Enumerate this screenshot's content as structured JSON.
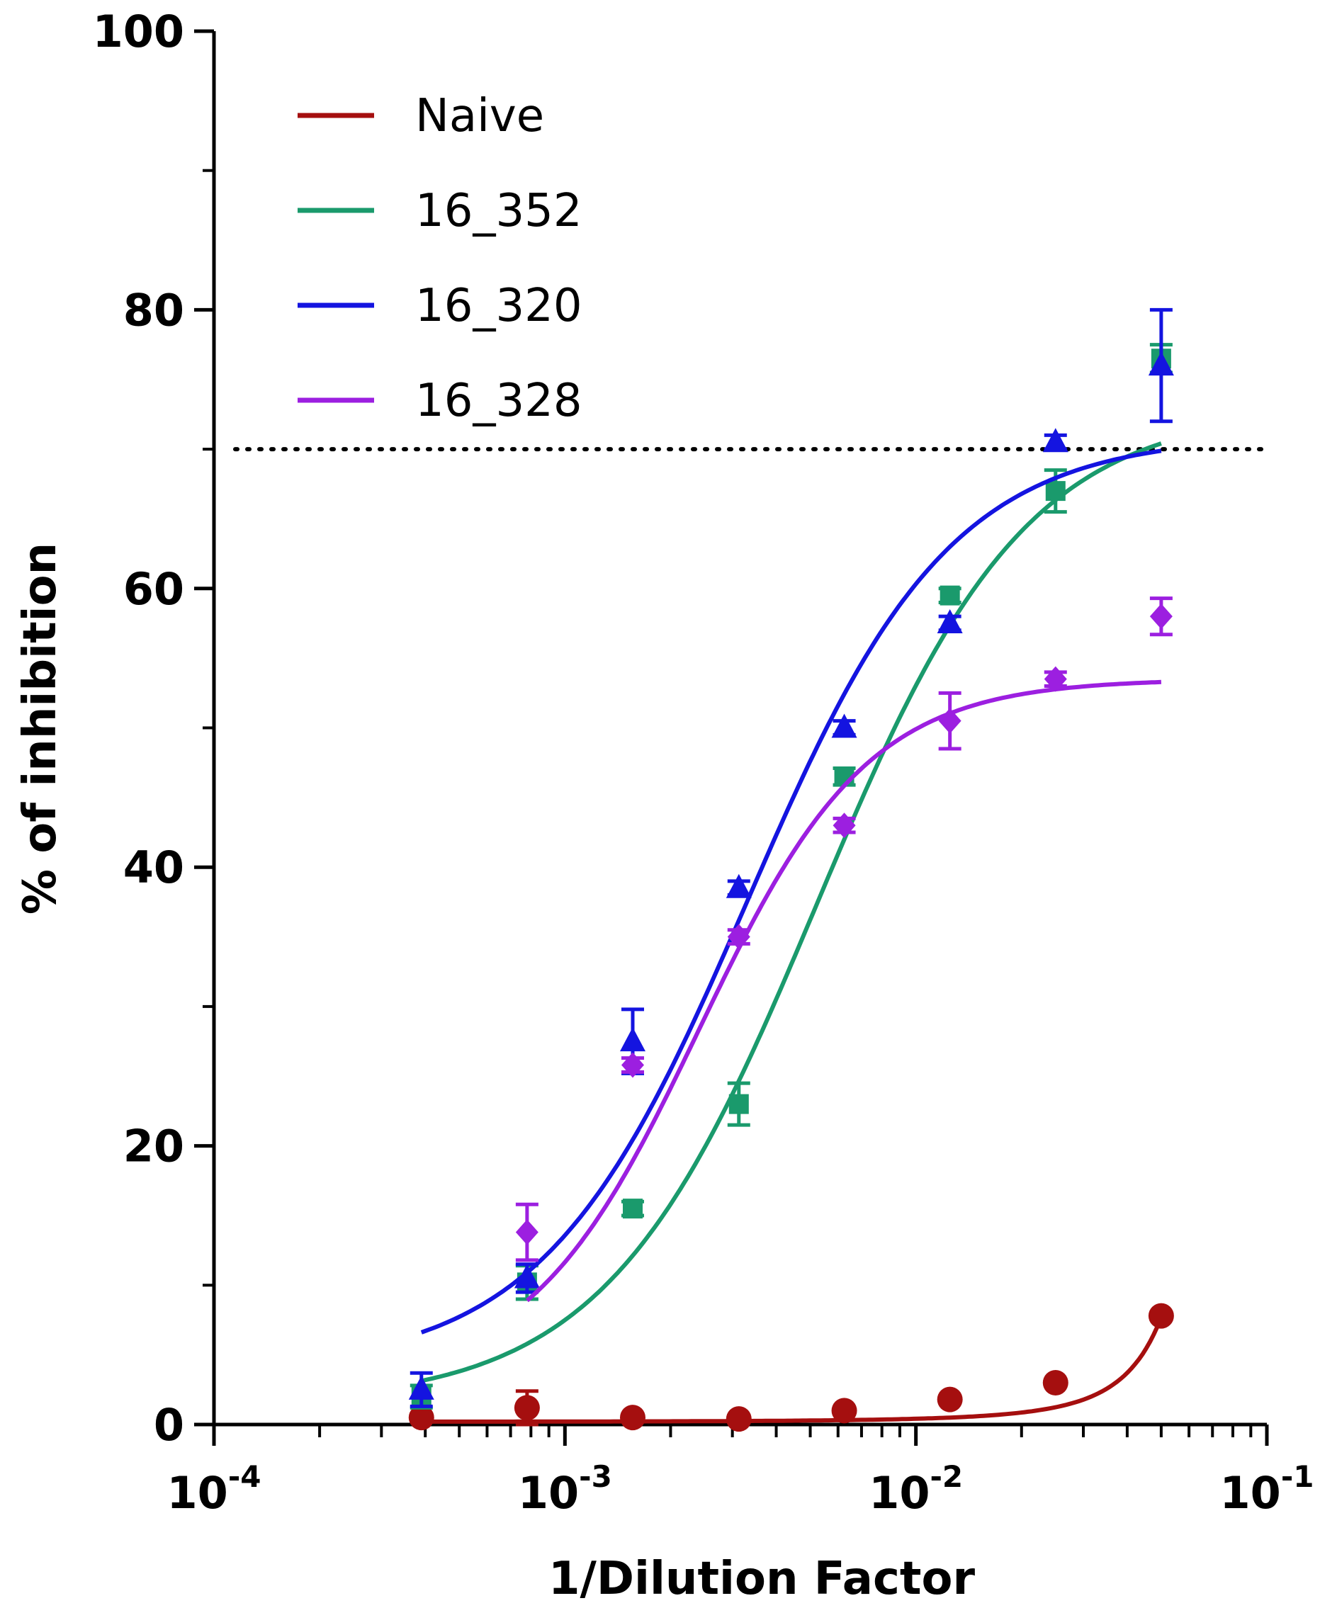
{
  "chart_data": {
    "type": "scatter",
    "title": "",
    "xlabel": "1/Dilution Factor",
    "ylabel": "% of inhibition",
    "xscale": "log",
    "xlim": [
      0.0001,
      0.1
    ],
    "ylim": [
      0,
      100
    ],
    "y_ticks": [
      0,
      20,
      40,
      60,
      80,
      100
    ],
    "y_tick_labels": [
      "0",
      "20",
      "40",
      "60",
      "80",
      "100"
    ],
    "x_ticks": [
      0.0001,
      0.001,
      0.01,
      0.1
    ],
    "x_tick_labels": [
      {
        "base": "10",
        "exp": "-4"
      },
      {
        "base": "10",
        "exp": "-3"
      },
      {
        "base": "10",
        "exp": "-2"
      },
      {
        "base": "10",
        "exp": "-1"
      }
    ],
    "reference_line": {
      "y": 70,
      "style": "dotted",
      "color": "#000000"
    },
    "legend_position": "top-left",
    "series": [
      {
        "name": "Naive",
        "color": "#a50f0f",
        "marker": "circle",
        "x": [
          0.00039,
          0.00078,
          0.00156,
          0.00313,
          0.00625,
          0.0125,
          0.025,
          0.05
        ],
        "y": [
          0.5,
          1.2,
          0.5,
          0.4,
          1.0,
          1.8,
          3.0,
          7.8
        ],
        "err": [
          0,
          1.2,
          0,
          0,
          0,
          0,
          0,
          0
        ],
        "fit": {
          "model": "exp",
          "a": 0.2,
          "k": 73
        }
      },
      {
        "name": "16_352",
        "color": "#1a9a6c",
        "marker": "square",
        "x": [
          0.00039,
          0.00078,
          0.00156,
          0.00313,
          0.00625,
          0.0125,
          0.025,
          0.05
        ],
        "y": [
          2.0,
          10.2,
          15.5,
          23.0,
          46.5,
          59.5,
          67.0,
          76.5
        ],
        "err": [
          0.8,
          1.2,
          0.5,
          1.5,
          0.6,
          0.5,
          1.5,
          1.0
        ],
        "fit": {
          "model": "sigmoid",
          "bottom": 1.5,
          "top": 73.0,
          "ec50": 0.0052,
          "hill": 1.45
        }
      },
      {
        "name": "16_320",
        "color": "#1414e0",
        "marker": "triangle",
        "x": [
          0.00039,
          0.00078,
          0.00156,
          0.00313,
          0.00625,
          0.0125,
          0.025,
          0.05
        ],
        "y": [
          2.5,
          10.5,
          27.5,
          38.5,
          50.0,
          57.5,
          70.5,
          76.0
        ],
        "err": [
          1.2,
          1.0,
          2.3,
          0.5,
          0.5,
          0.5,
          0.5,
          4.0
        ],
        "fit": {
          "model": "sigmoid",
          "bottom": 4.0,
          "top": 71.0,
          "ec50": 0.0033,
          "hill": 1.5
        }
      },
      {
        "name": "16_328",
        "color": "#9c1fe0",
        "marker": "diamond",
        "x": [
          0.00078,
          0.00156,
          0.00313,
          0.00625,
          0.0125,
          0.025,
          0.05
        ],
        "y": [
          13.8,
          25.8,
          35.0,
          43.0,
          50.5,
          53.5,
          58.0
        ],
        "err": [
          2.0,
          0.5,
          0.5,
          0.5,
          2.0,
          0.5,
          1.3
        ],
        "fit": {
          "model": "sigmoid",
          "bottom": 3.0,
          "top": 53.5,
          "ec50": 0.0024,
          "hill": 1.8
        }
      }
    ]
  }
}
